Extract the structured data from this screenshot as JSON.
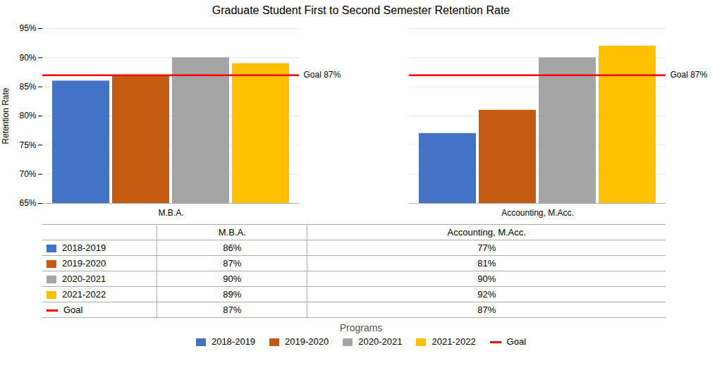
{
  "chart_data": {
    "type": "bar",
    "title": "Graduate Student First to Second Semester Retention Rate",
    "categories": [
      "M.B.A.",
      "Accounting, M.Acc."
    ],
    "series": [
      {
        "name": "2018-2019",
        "color": "#4472C4",
        "values": [
          0.86,
          0.77
        ],
        "value_labels": [
          "86%",
          "77%"
        ]
      },
      {
        "name": "2019-2020",
        "color": "#C55A11",
        "values": [
          0.87,
          0.81
        ],
        "value_labels": [
          "87%",
          "81%"
        ]
      },
      {
        "name": "2020-2021",
        "color": "#A5A5A5",
        "values": [
          0.9,
          0.9
        ],
        "value_labels": [
          "90%",
          "90%"
        ]
      },
      {
        "name": "2021-2022",
        "color": "#FFC000",
        "values": [
          0.89,
          0.92
        ],
        "value_labels": [
          "89%",
          "92%"
        ]
      },
      {
        "name": "Goal",
        "type": "line",
        "color": "#FF0000",
        "values": [
          0.87,
          0.87
        ],
        "value_labels": [
          "87%",
          "87%"
        ]
      }
    ],
    "annotations": [
      {
        "text": "Goal 87%",
        "category": "M.B.A.",
        "y": 0.87
      },
      {
        "text": "Goal 87%",
        "category": "Accounting, M.Acc.",
        "y": 0.87
      }
    ],
    "xlabel": "Programs",
    "ylabel": "Retention Rate",
    "ylim": [
      0.65,
      0.95
    ],
    "yticks": [
      {
        "value": 0.65,
        "label": "65%"
      },
      {
        "value": 0.7,
        "label": "70%"
      },
      {
        "value": 0.75,
        "label": "75%"
      },
      {
        "value": 0.8,
        "label": "80%"
      },
      {
        "value": 0.85,
        "label": "85%"
      },
      {
        "value": 0.9,
        "label": "90%"
      },
      {
        "value": 0.95,
        "label": "95%"
      }
    ],
    "grid": true,
    "legend": "bottom"
  }
}
